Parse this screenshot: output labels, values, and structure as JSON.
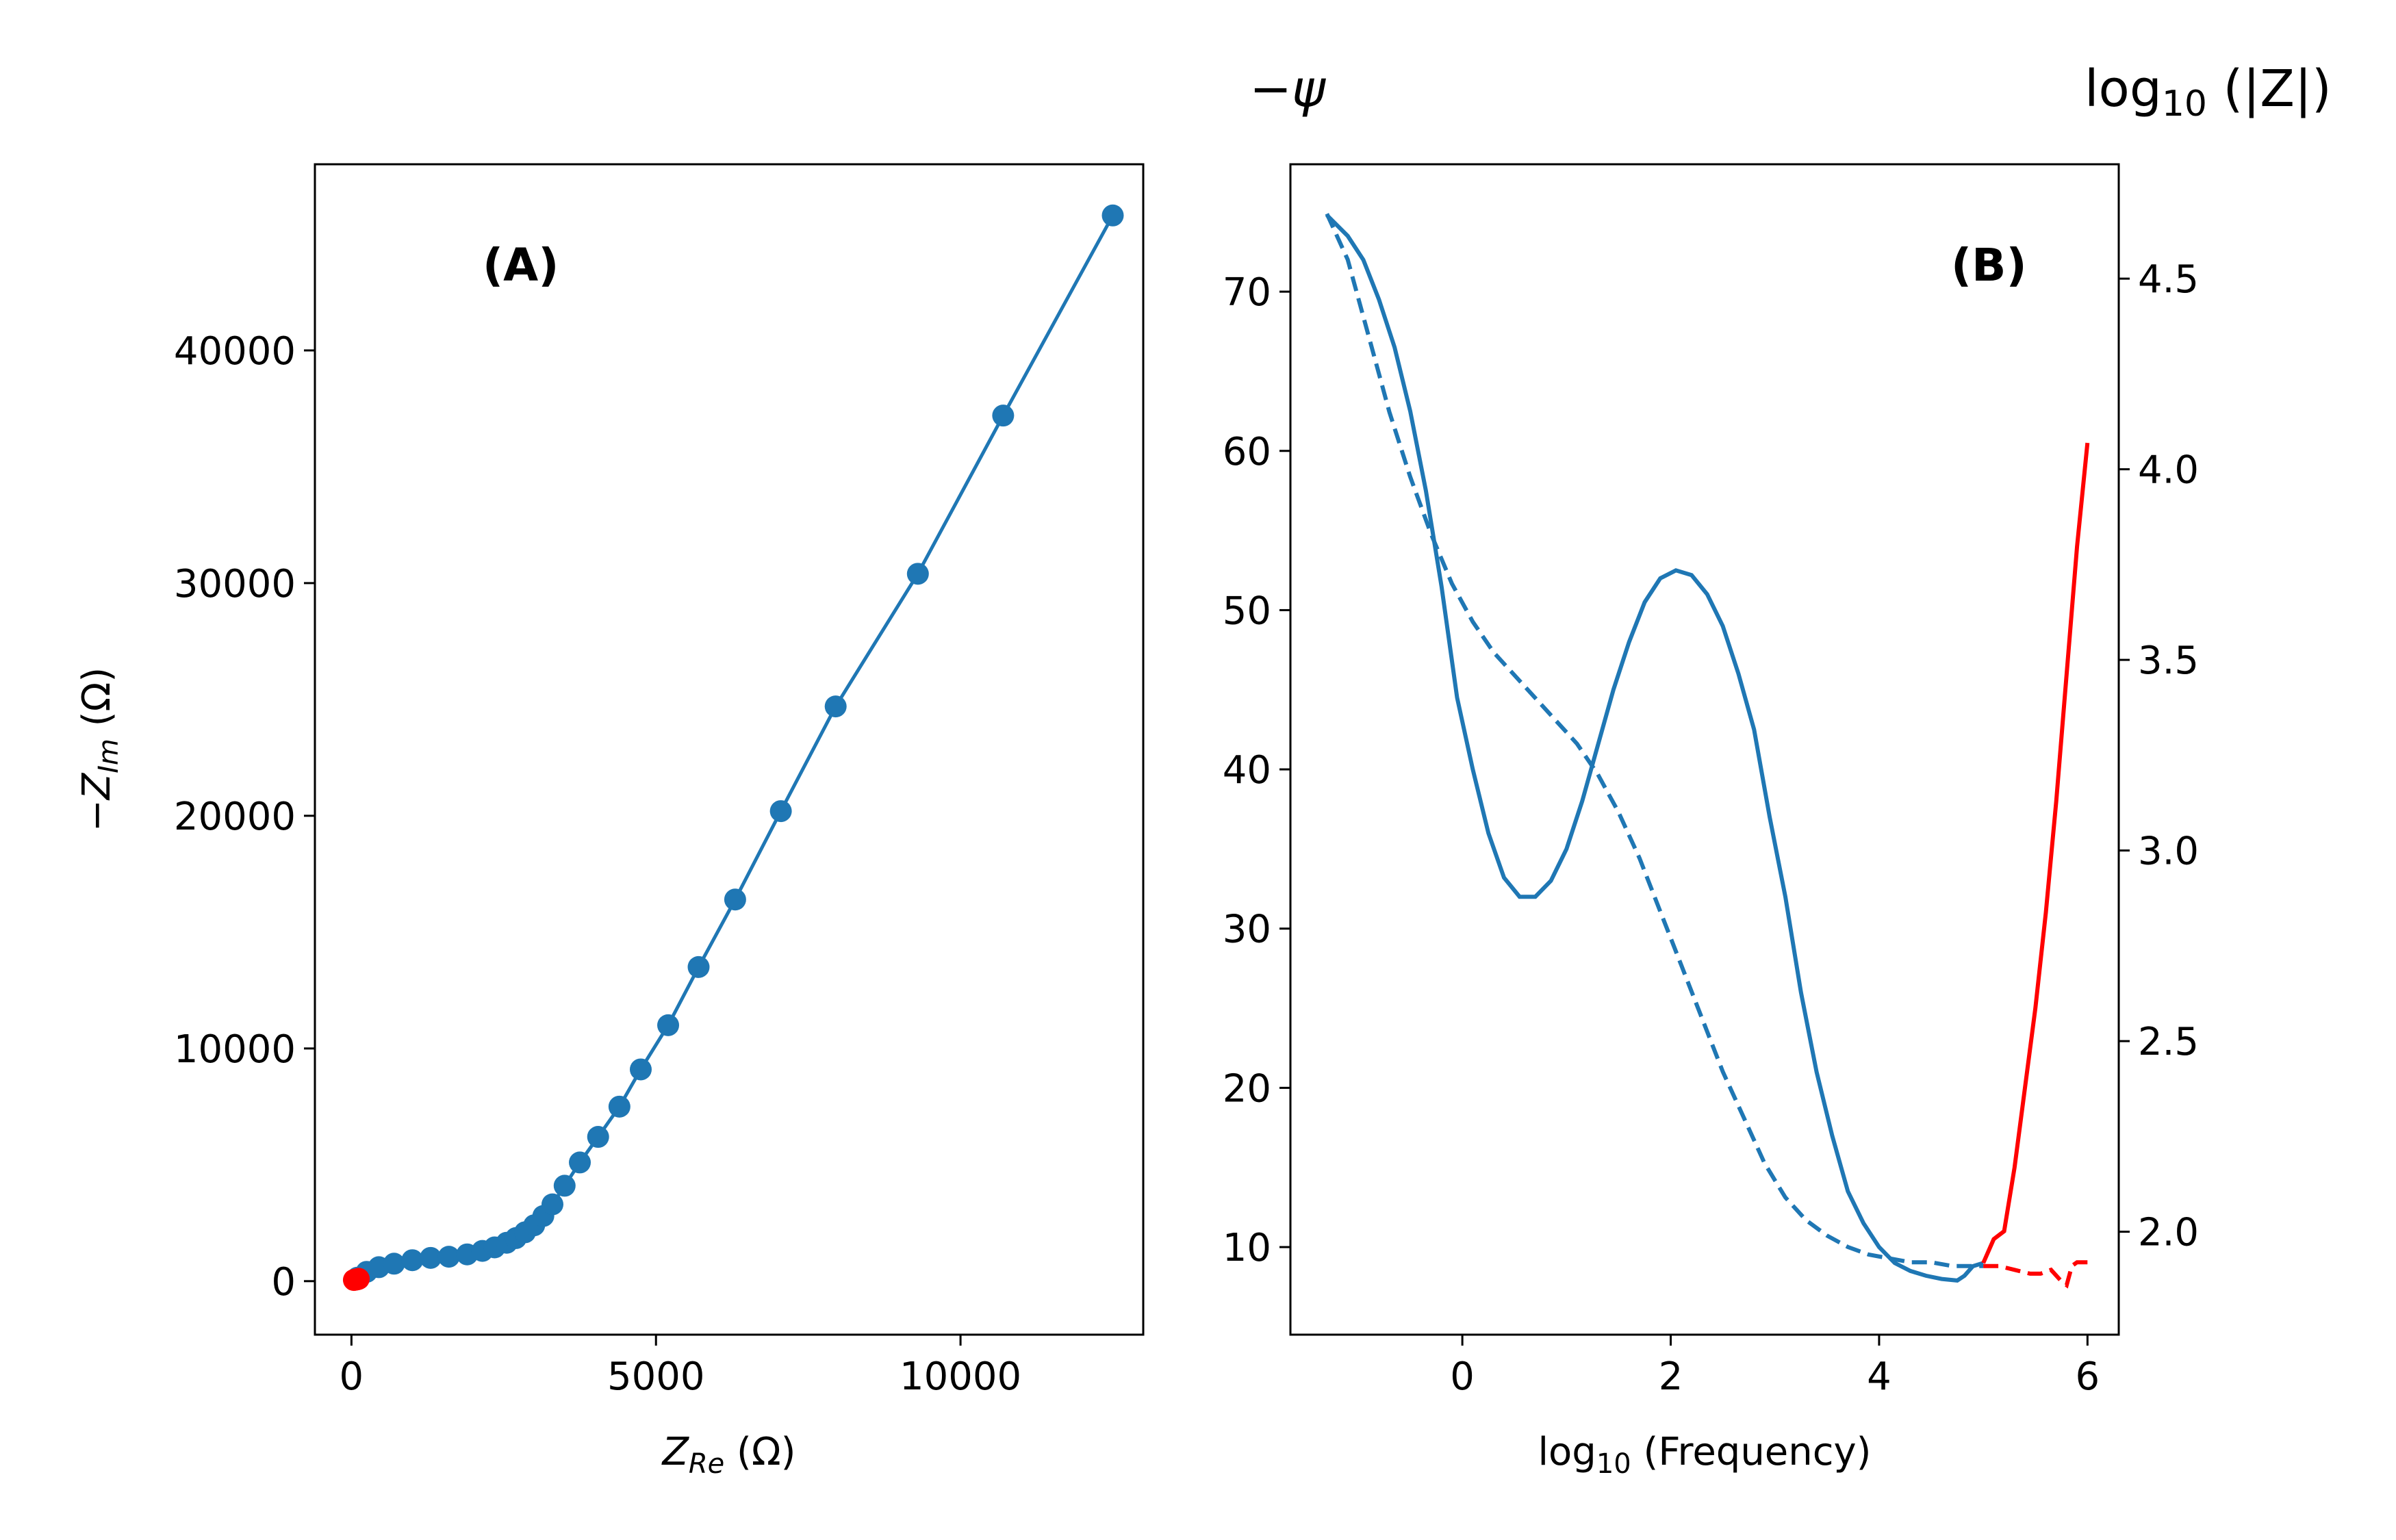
{
  "chart_data": [
    {
      "type": "scatter",
      "panel_label": "(A)",
      "xlabel": "Z_{Re} (Ω)",
      "xlabel_main": "Z",
      "xlabel_sub": "Re",
      "xlabel_unit": " (Ω)",
      "ylabel_prefix": "−Z",
      "ylabel_sub": "Im",
      "ylabel_unit": " (Ω)",
      "xlim": [
        -600,
        13000
      ],
      "ylim": [
        -2300,
        48000
      ],
      "xticks": [
        0,
        5000,
        10000
      ],
      "xtick_labels": [
        "0",
        "5000",
        "10000"
      ],
      "yticks": [
        0,
        10000,
        20000,
        30000,
        40000
      ],
      "ytick_labels": [
        "0",
        "10000",
        "20000",
        "30000",
        "40000"
      ],
      "grid": false,
      "series": [
        {
          "color": "#1f77b4",
          "x": [
            100,
            250,
            450,
            700,
            1000,
            1300,
            1600,
            1900,
            2150,
            2350,
            2550,
            2700,
            2850,
            3000,
            3150,
            3300,
            3500,
            3750,
            4050,
            4400,
            4750,
            5200,
            5700,
            6300,
            7050,
            7950,
            9300,
            10700,
            12500
          ],
          "y": [
            150,
            400,
            600,
            750,
            900,
            1000,
            1050,
            1150,
            1300,
            1450,
            1650,
            1850,
            2100,
            2400,
            2800,
            3300,
            4100,
            5100,
            6200,
            7500,
            9100,
            11000,
            13500,
            16400,
            20200,
            24700,
            30400,
            37200,
            45800
          ]
        },
        {
          "color": "#ff0000",
          "x": [
            40,
            60,
            80,
            100,
            120
          ],
          "y": [
            50,
            60,
            70,
            80,
            100
          ]
        }
      ]
    },
    {
      "type": "line",
      "panel_label": "(B)",
      "xlabel_main": "log",
      "xlabel_sub": "10",
      "xlabel_rest": " (Frequency)",
      "left_axis_title": "−ψ",
      "right_axis_title_main": "log",
      "right_axis_title_sub": "10",
      "right_axis_title_rest": " (|Z|)",
      "xlim": [
        -1.65,
        6.3
      ],
      "ylim": [
        4.5,
        78
      ],
      "y2lim": [
        1.73,
        4.8
      ],
      "xticks": [
        0,
        2,
        4,
        6
      ],
      "xtick_labels": [
        "0",
        "2",
        "4",
        "6"
      ],
      "yticks": [
        10,
        20,
        30,
        40,
        50,
        60,
        70
      ],
      "ytick_labels": [
        "10",
        "20",
        "30",
        "40",
        "50",
        "60",
        "70"
      ],
      "y2ticks": [
        2.0,
        2.5,
        3.0,
        3.5,
        4.0,
        4.5
      ],
      "y2tick_labels": [
        "2.0",
        "2.5",
        "3.0",
        "3.5",
        "4.0",
        "4.5"
      ],
      "grid": false,
      "series": [
        {
          "color": "#1f77b4",
          "style": "solid",
          "axis": "left",
          "x": [
            -1.3,
            -1.1,
            -0.95,
            -0.8,
            -0.65,
            -0.5,
            -0.35,
            -0.2,
            -0.05,
            0.1,
            0.25,
            0.4,
            0.55,
            0.7,
            0.85,
            1.0,
            1.15,
            1.3,
            1.45,
            1.6,
            1.75,
            1.9,
            2.05,
            2.2,
            2.35,
            2.5,
            2.65,
            2.8,
            2.95,
            3.1,
            3.25,
            3.4,
            3.55,
            3.7,
            3.85,
            4.0,
            4.15,
            4.3,
            4.45,
            4.6,
            4.75,
            4.82,
            4.9,
            5.0
          ],
          "y": [
            74.8,
            73.5,
            72.0,
            69.5,
            66.5,
            62.5,
            57.5,
            51.5,
            44.5,
            40.0,
            36.0,
            33.2,
            32.0,
            32.0,
            33.0,
            35.0,
            38.0,
            41.5,
            45.0,
            48.0,
            50.5,
            52.0,
            52.5,
            52.2,
            51.0,
            49.0,
            46.0,
            42.5,
            37.0,
            32.0,
            26.0,
            21.0,
            17.0,
            13.5,
            11.5,
            10.0,
            9.0,
            8.5,
            8.2,
            8.0,
            7.9,
            8.2,
            8.8,
            9.0
          ]
        },
        {
          "color": "#1f77b4",
          "style": "dashed",
          "axis": "right",
          "x": [
            -1.3,
            -1.1,
            -0.9,
            -0.7,
            -0.5,
            -0.3,
            -0.1,
            0.1,
            0.3,
            0.5,
            0.7,
            0.9,
            1.1,
            1.3,
            1.5,
            1.7,
            1.9,
            2.1,
            2.3,
            2.5,
            2.7,
            2.9,
            3.1,
            3.3,
            3.5,
            3.7,
            3.9,
            4.1,
            4.3,
            4.5,
            4.7,
            5.0
          ],
          "y": [
            4.67,
            4.55,
            4.35,
            4.15,
            3.98,
            3.83,
            3.7,
            3.6,
            3.52,
            3.46,
            3.4,
            3.34,
            3.28,
            3.2,
            3.1,
            2.98,
            2.84,
            2.7,
            2.56,
            2.42,
            2.3,
            2.18,
            2.09,
            2.03,
            1.99,
            1.96,
            1.94,
            1.93,
            1.92,
            1.92,
            1.91,
            1.91
          ]
        },
        {
          "color": "#ff0000",
          "style": "solid",
          "axis": "left",
          "x": [
            5.0,
            5.1,
            5.2,
            5.3,
            5.4,
            5.5,
            5.6,
            5.7,
            5.8,
            5.9,
            6.0
          ],
          "y": [
            9.0,
            10.5,
            11.0,
            15.0,
            20.0,
            25.0,
            31.0,
            38.0,
            46.0,
            54.0,
            60.5
          ]
        },
        {
          "color": "#ff0000",
          "style": "dashed",
          "axis": "right",
          "x": [
            5.0,
            5.15,
            5.3,
            5.45,
            5.55,
            5.65,
            5.75,
            5.8,
            5.85,
            5.9,
            6.0
          ],
          "y": [
            1.91,
            1.91,
            1.9,
            1.89,
            1.89,
            1.9,
            1.87,
            1.86,
            1.91,
            1.92,
            1.92
          ]
        }
      ]
    }
  ]
}
